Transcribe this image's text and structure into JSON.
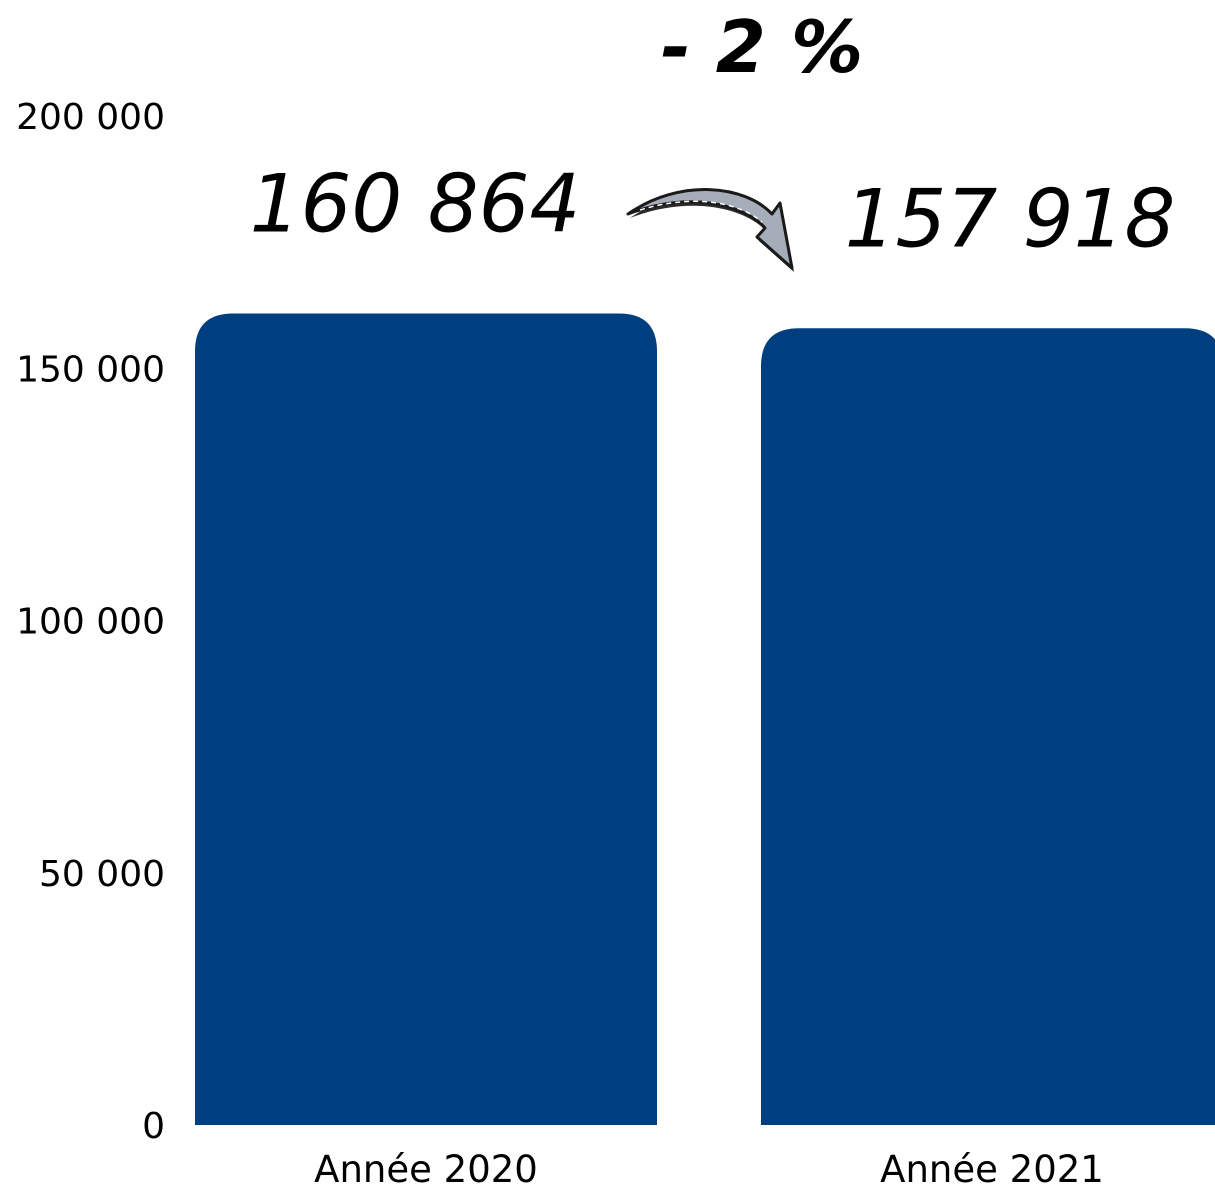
{
  "chart_data": {
    "type": "bar",
    "categories": [
      "Année 2020",
      "Année 2021"
    ],
    "values": [
      160864,
      157918
    ],
    "value_labels": [
      "160 864",
      "157 918"
    ],
    "y_ticks": [
      0,
      50000,
      100000,
      150000,
      200000
    ],
    "y_tick_labels": [
      "0",
      "50 000",
      "100 000",
      "150 000",
      "200 000"
    ],
    "ylim": [
      0,
      200000
    ],
    "grid": false,
    "legend": "none",
    "change_annotation": "- 2 %",
    "bar_color": "#003f7f",
    "arrow_color": "#a4adb8"
  }
}
